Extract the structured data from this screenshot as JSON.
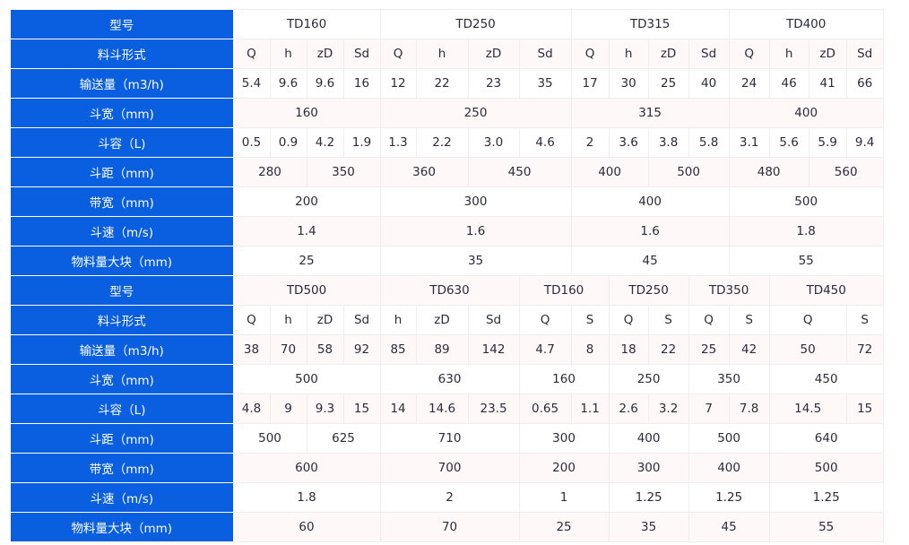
{
  "colors": {
    "label_bg": "#0a5fe0",
    "stripe": "#fff8f8",
    "border": "#eeeeee"
  },
  "sections": [
    {
      "rows": [
        {
          "label": "型号",
          "cells": [
            [
              "TD160",
              4
            ],
            [
              "TD250",
              4
            ],
            [
              "TD315",
              4
            ],
            [
              "TD400",
              4
            ]
          ]
        },
        {
          "label": "料斗形式",
          "cells": [
            [
              "Q",
              1
            ],
            [
              "h",
              1
            ],
            [
              "zD",
              1
            ],
            [
              "Sd",
              1
            ],
            [
              "Q",
              1
            ],
            [
              "h",
              1
            ],
            [
              "zD",
              1
            ],
            [
              "Sd",
              1
            ],
            [
              "Q",
              1
            ],
            [
              "h",
              1
            ],
            [
              "zD",
              1
            ],
            [
              "Sd",
              1
            ],
            [
              "Q",
              1
            ],
            [
              "h",
              1
            ],
            [
              "zD",
              1
            ],
            [
              "Sd",
              1
            ]
          ]
        },
        {
          "label": "输送量（m3/h)",
          "cells": [
            [
              "5.4",
              1
            ],
            [
              "9.6",
              1
            ],
            [
              "9.6",
              1
            ],
            [
              "16",
              1
            ],
            [
              "12",
              1
            ],
            [
              "22",
              1
            ],
            [
              "23",
              1
            ],
            [
              "35",
              1
            ],
            [
              "17",
              1
            ],
            [
              "30",
              1
            ],
            [
              "25",
              1
            ],
            [
              "40",
              1
            ],
            [
              "24",
              1
            ],
            [
              "46",
              1
            ],
            [
              "41",
              1
            ],
            [
              "66",
              1
            ]
          ]
        },
        {
          "label": "斗宽（mm)",
          "cells": [
            [
              "160",
              4
            ],
            [
              "250",
              4
            ],
            [
              "315",
              4
            ],
            [
              "400",
              4
            ]
          ]
        },
        {
          "label": "斗容（L)",
          "cells": [
            [
              "0.5",
              1
            ],
            [
              "0.9",
              1
            ],
            [
              "4.2",
              1
            ],
            [
              "1.9",
              1
            ],
            [
              "1.3",
              1
            ],
            [
              "2.2",
              1
            ],
            [
              "3.0",
              1
            ],
            [
              "4.6",
              1
            ],
            [
              "2",
              1
            ],
            [
              "3.6",
              1
            ],
            [
              "3.8",
              1
            ],
            [
              "5.8",
              1
            ],
            [
              "3.1",
              1
            ],
            [
              "5.6",
              1
            ],
            [
              "5.9",
              1
            ],
            [
              "9.4",
              1
            ]
          ]
        },
        {
          "label": "斗距（mm)",
          "cells": [
            [
              "280",
              2
            ],
            [
              "350",
              2
            ],
            [
              "360",
              2
            ],
            [
              "450",
              2
            ],
            [
              "400",
              2
            ],
            [
              "500",
              2
            ],
            [
              "480",
              2
            ],
            [
              "560",
              2
            ]
          ]
        },
        {
          "label": "带宽（mm)",
          "cells": [
            [
              "200",
              4
            ],
            [
              "300",
              4
            ],
            [
              "400",
              4
            ],
            [
              "500",
              4
            ]
          ]
        },
        {
          "label": "斗速（m/s)",
          "cells": [
            [
              "1.4",
              4
            ],
            [
              "1.6",
              4
            ],
            [
              "1.6",
              4
            ],
            [
              "1.8",
              4
            ]
          ]
        },
        {
          "label": "物料量大块（mm)",
          "cells": [
            [
              "25",
              4
            ],
            [
              "35",
              4
            ],
            [
              "45",
              4
            ],
            [
              "55",
              4
            ]
          ]
        }
      ]
    },
    {
      "rows": [
        {
          "label": "型号",
          "cells": [
            [
              "TD500",
              4
            ],
            [
              "TD630",
              3
            ],
            [
              "TD160",
              2
            ],
            [
              "TD250",
              2
            ],
            [
              "TD350",
              2
            ],
            [
              "TD450",
              3
            ]
          ]
        },
        {
          "label": "料斗形式",
          "cells": [
            [
              "Q",
              1
            ],
            [
              "h",
              1
            ],
            [
              "zD",
              1
            ],
            [
              "Sd",
              1
            ],
            [
              "h",
              1
            ],
            [
              "zD",
              1
            ],
            [
              "Sd",
              1
            ],
            [
              "Q",
              1
            ],
            [
              "S",
              1
            ],
            [
              "Q",
              1
            ],
            [
              "S",
              1
            ],
            [
              "Q",
              1
            ],
            [
              "S",
              1
            ],
            [
              "Q",
              2
            ],
            [
              "S",
              1
            ]
          ]
        },
        {
          "label": "输送量（m3/h)",
          "cells": [
            [
              "38",
              1
            ],
            [
              "70",
              1
            ],
            [
              "58",
              1
            ],
            [
              "92",
              1
            ],
            [
              "85",
              1
            ],
            [
              "89",
              1
            ],
            [
              "142",
              1
            ],
            [
              "4.7",
              1
            ],
            [
              "8",
              1
            ],
            [
              "18",
              1
            ],
            [
              "22",
              1
            ],
            [
              "25",
              1
            ],
            [
              "42",
              1
            ],
            [
              "50",
              2
            ],
            [
              "72",
              1
            ]
          ]
        },
        {
          "label": "斗宽（mm)",
          "cells": [
            [
              "500",
              4
            ],
            [
              "630",
              3
            ],
            [
              "160",
              2
            ],
            [
              "250",
              2
            ],
            [
              "350",
              2
            ],
            [
              "450",
              3
            ]
          ]
        },
        {
          "label": "斗容（L)",
          "cells": [
            [
              "4.8",
              1
            ],
            [
              "9",
              1
            ],
            [
              "9.3",
              1
            ],
            [
              "15",
              1
            ],
            [
              "14",
              1
            ],
            [
              "14.6",
              1
            ],
            [
              "23.5",
              1
            ],
            [
              "0.65",
              1
            ],
            [
              "1.1",
              1
            ],
            [
              "2.6",
              1
            ],
            [
              "3.2",
              1
            ],
            [
              "7",
              1
            ],
            [
              "7.8",
              1
            ],
            [
              "14.5",
              2
            ],
            [
              "15",
              1
            ]
          ]
        },
        {
          "label": "斗距（mm)",
          "cells": [
            [
              "500",
              2
            ],
            [
              "625",
              2
            ],
            [
              "710",
              3
            ],
            [
              "300",
              2
            ],
            [
              "400",
              2
            ],
            [
              "500",
              2
            ],
            [
              "640",
              3
            ]
          ]
        },
        {
          "label": "带宽（mm)",
          "cells": [
            [
              "600",
              4
            ],
            [
              "700",
              3
            ],
            [
              "200",
              2
            ],
            [
              "300",
              2
            ],
            [
              "400",
              2
            ],
            [
              "500",
              3
            ]
          ]
        },
        {
          "label": "斗速（m/s)",
          "cells": [
            [
              "1.8",
              4
            ],
            [
              "2",
              3
            ],
            [
              "1",
              2
            ],
            [
              "1.25",
              2
            ],
            [
              "1.25",
              2
            ],
            [
              "1.25",
              3
            ]
          ]
        },
        {
          "label": "物料量大块（mm)",
          "cells": [
            [
              "60",
              4
            ],
            [
              "70",
              3
            ],
            [
              "25",
              2
            ],
            [
              "35",
              2
            ],
            [
              "45",
              2
            ],
            [
              "55",
              3
            ]
          ]
        }
      ]
    }
  ]
}
